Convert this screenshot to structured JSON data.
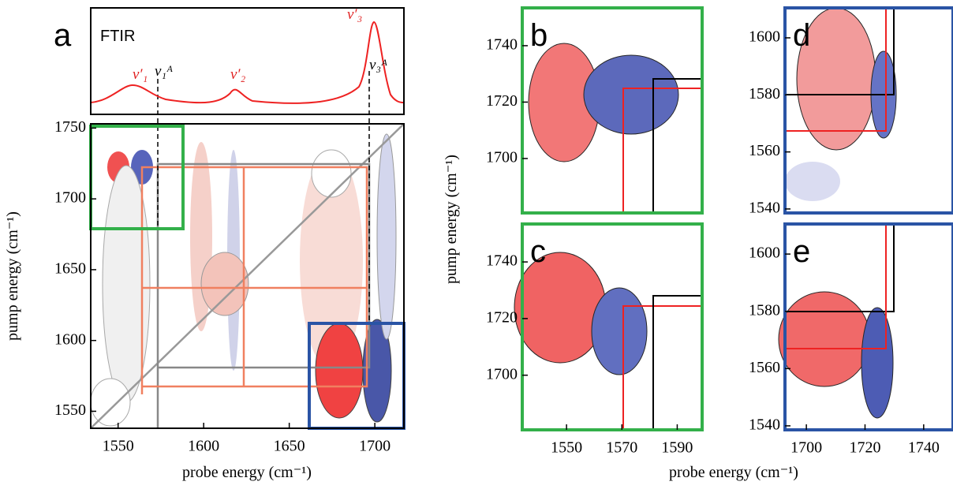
{
  "chart_data": [
    {
      "type": "line",
      "panel": "a",
      "title": "FTIR",
      "annotations": [
        "v′₁",
        "v₁ᴬ",
        "v′₂",
        "v′₃",
        "v₃ᴬ"
      ],
      "frame_color": "#000000"
    },
    {
      "type": "contour",
      "panel": "a",
      "xlabel": "probe energy (cm⁻¹)",
      "ylabel": "pump energy (cm⁻¹)",
      "xlim": [
        1534,
        1717
      ],
      "ylim": [
        1538,
        1753
      ],
      "xticks": [
        1550,
        1600,
        1650,
        1700
      ],
      "yticks": [
        1550,
        1600,
        1650,
        1700,
        1750
      ],
      "frame_color": "#000000"
    },
    {
      "type": "contour",
      "panel": "b",
      "ylabel": "pump energy (cm⁻¹)",
      "xlim": [
        1534,
        1599
      ],
      "ylim": [
        1680.7,
        1753.4
      ],
      "yticks": [
        1700,
        1720,
        1740
      ],
      "frame_color": "#33b04a"
    },
    {
      "type": "contour",
      "panel": "c",
      "xlabel": "probe energy (cm⁻¹)",
      "xlim": [
        1534,
        1599
      ],
      "ylim": [
        1680.7,
        1753.4
      ],
      "xticks": [
        1550,
        1570,
        1590
      ],
      "yticks": [
        1700,
        1720,
        1740
      ],
      "frame_color": "#33b04a"
    },
    {
      "type": "contour",
      "panel": "d",
      "xlim": [
        1692.7,
        1750
      ],
      "ylim": [
        1538.6,
        1610.5
      ],
      "yticks": [
        1540,
        1560,
        1580,
        1600
      ],
      "frame_color": "#2a54a5"
    },
    {
      "type": "contour",
      "panel": "e",
      "xlim": [
        1692.7,
        1750
      ],
      "ylim": [
        1538.6,
        1610.5
      ],
      "xticks": [
        1700,
        1720,
        1740
      ],
      "yticks": [
        1540,
        1560,
        1580,
        1600
      ],
      "frame_color": "#2a54a5"
    }
  ]
}
